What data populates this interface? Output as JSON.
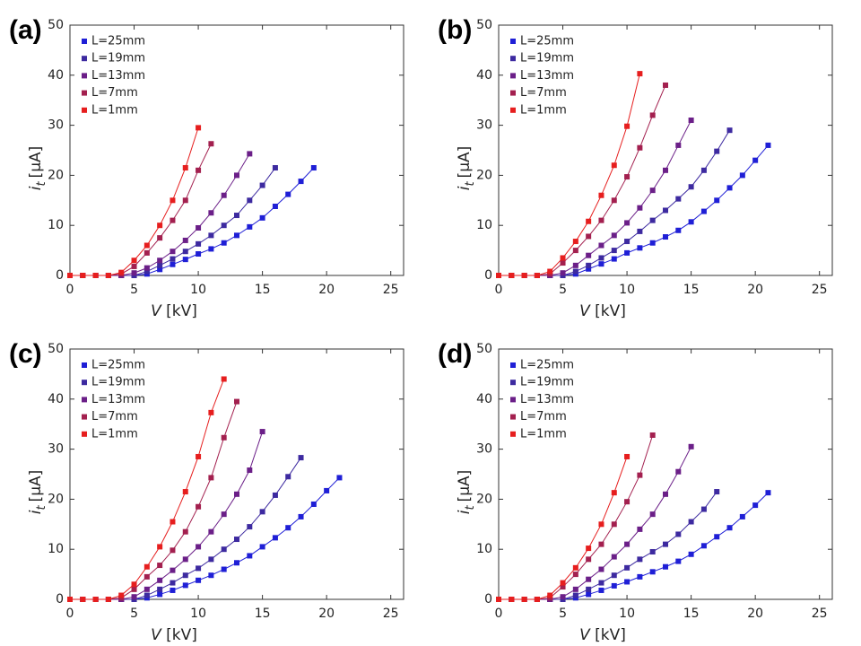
{
  "chart_data": [
    {
      "type": "line",
      "title": "(a)",
      "xlabel": {
        "var": "V",
        "unit": "[kV]"
      },
      "ylabel": {
        "var": "i",
        "sub": "t",
        "unit": "[μA]"
      },
      "xlim": [
        0,
        26
      ],
      "ylim": [
        0,
        50
      ],
      "xticks": [
        0,
        5,
        10,
        15,
        20,
        25
      ],
      "yticks": [
        0,
        10,
        20,
        30,
        40,
        50
      ],
      "series": [
        {
          "name": "L=25mm",
          "color": "#1f1fd6",
          "x": [
            0,
            1,
            2,
            3,
            4,
            5,
            6,
            7,
            8,
            9,
            10,
            11,
            12,
            13,
            14,
            15,
            16,
            17,
            18,
            19
          ],
          "values": [
            0,
            0,
            0,
            0,
            0,
            0,
            0.3,
            1.2,
            2.2,
            3.2,
            4.3,
            5.3,
            6.5,
            8,
            9.7,
            11.5,
            13.8,
            16.2,
            18.8,
            21.5
          ]
        },
        {
          "name": "L=19mm",
          "color": "#3d2aa0",
          "x": [
            0,
            1,
            2,
            3,
            4,
            5,
            6,
            7,
            8,
            9,
            10,
            11,
            12,
            13,
            14,
            15,
            16
          ],
          "values": [
            0,
            0,
            0,
            0,
            0,
            0,
            0.8,
            2,
            3.3,
            4.8,
            6.3,
            8,
            10,
            12,
            15,
            18,
            21.5
          ]
        },
        {
          "name": "L=13mm",
          "color": "#6b1f88",
          "x": [
            0,
            1,
            2,
            3,
            4,
            5,
            6,
            7,
            8,
            9,
            10,
            11,
            12,
            13,
            14
          ],
          "values": [
            0,
            0,
            0,
            0,
            0,
            0.5,
            1.5,
            3,
            4.8,
            7,
            9.5,
            12.5,
            16,
            20,
            24.3
          ]
        },
        {
          "name": "L=7mm",
          "color": "#a3204f",
          "x": [
            0,
            1,
            2,
            3,
            4,
            5,
            6,
            7,
            8,
            9,
            10,
            11
          ],
          "values": [
            0,
            0,
            0,
            0,
            0.3,
            1.8,
            4.5,
            7.5,
            11,
            15,
            21,
            26.3
          ]
        },
        {
          "name": "L=1mm",
          "color": "#e61e1e",
          "x": [
            0,
            1,
            2,
            3,
            4,
            5,
            6,
            7,
            8,
            9,
            10
          ],
          "values": [
            0,
            0,
            0,
            0,
            0.6,
            3,
            6,
            10,
            15,
            21.5,
            29.5
          ]
        }
      ]
    },
    {
      "type": "line",
      "title": "(b)",
      "xlabel": {
        "var": "V",
        "unit": "[kV]"
      },
      "ylabel": {
        "var": "i",
        "sub": "t",
        "unit": "[μA]"
      },
      "xlim": [
        0,
        26
      ],
      "ylim": [
        0,
        50
      ],
      "xticks": [
        0,
        5,
        10,
        15,
        20,
        25
      ],
      "yticks": [
        0,
        10,
        20,
        30,
        40,
        50
      ],
      "series": [
        {
          "name": "L=25mm",
          "color": "#1f1fd6",
          "x": [
            0,
            1,
            2,
            3,
            4,
            5,
            6,
            7,
            8,
            9,
            10,
            11,
            12,
            13,
            14,
            15,
            16,
            17,
            18,
            19,
            20,
            21
          ],
          "values": [
            0,
            0,
            0,
            0,
            0,
            0,
            0.3,
            1.3,
            2.3,
            3.3,
            4.5,
            5.5,
            6.5,
            7.7,
            9,
            10.7,
            12.8,
            15,
            17.5,
            20,
            23,
            26
          ]
        },
        {
          "name": "L=19mm",
          "color": "#3d2aa0",
          "x": [
            0,
            1,
            2,
            3,
            4,
            5,
            6,
            7,
            8,
            9,
            10,
            11,
            12,
            13,
            14,
            15,
            16,
            17,
            18
          ],
          "values": [
            0,
            0,
            0,
            0,
            0,
            0,
            0.8,
            2,
            3.5,
            5,
            6.8,
            8.8,
            11,
            13,
            15.3,
            17.7,
            21,
            24.8,
            29
          ]
        },
        {
          "name": "L=13mm",
          "color": "#6b1f88",
          "x": [
            0,
            1,
            2,
            3,
            4,
            5,
            6,
            7,
            8,
            9,
            10,
            11,
            12,
            13,
            14,
            15
          ],
          "values": [
            0,
            0,
            0,
            0,
            0,
            0.5,
            2,
            4,
            6,
            8,
            10.5,
            13.5,
            17,
            21,
            26,
            31
          ]
        },
        {
          "name": "L=7mm",
          "color": "#a3204f",
          "x": [
            0,
            1,
            2,
            3,
            4,
            5,
            6,
            7,
            8,
            9,
            10,
            11,
            12,
            13
          ],
          "values": [
            0,
            0,
            0,
            0,
            0.3,
            2.5,
            5,
            7.8,
            11,
            15,
            19.7,
            25.5,
            32,
            38
          ]
        },
        {
          "name": "L=1mm",
          "color": "#e61e1e",
          "x": [
            0,
            1,
            2,
            3,
            4,
            5,
            6,
            7,
            8,
            9,
            10,
            11
          ],
          "values": [
            0,
            0,
            0,
            0,
            0.8,
            3.5,
            6.8,
            10.8,
            16,
            22,
            29.8,
            40.3
          ]
        }
      ]
    },
    {
      "type": "line",
      "title": "(c)",
      "xlabel": {
        "var": "V",
        "unit": "[kV]"
      },
      "ylabel": {
        "var": "i",
        "sub": "t",
        "unit": "[μA]"
      },
      "xlim": [
        0,
        26
      ],
      "ylim": [
        0,
        50
      ],
      "xticks": [
        0,
        5,
        10,
        15,
        20,
        25
      ],
      "yticks": [
        0,
        10,
        20,
        30,
        40,
        50
      ],
      "series": [
        {
          "name": "L=25mm",
          "color": "#1f1fd6",
          "x": [
            0,
            1,
            2,
            3,
            4,
            5,
            6,
            7,
            8,
            9,
            10,
            11,
            12,
            13,
            14,
            15,
            16,
            17,
            18,
            19,
            20,
            21
          ],
          "values": [
            0,
            0,
            0,
            0,
            0,
            0,
            0.3,
            1,
            1.8,
            2.8,
            3.8,
            4.8,
            6,
            7.3,
            8.7,
            10.5,
            12.3,
            14.3,
            16.5,
            19,
            21.7,
            24.3
          ]
        },
        {
          "name": "L=19mm",
          "color": "#3d2aa0",
          "x": [
            0,
            1,
            2,
            3,
            4,
            5,
            6,
            7,
            8,
            9,
            10,
            11,
            12,
            13,
            14,
            15,
            16,
            17,
            18
          ],
          "values": [
            0,
            0,
            0,
            0,
            0,
            0,
            0.8,
            2,
            3.3,
            4.8,
            6.2,
            8,
            10,
            12,
            14.5,
            17.5,
            20.8,
            24.5,
            28.3
          ]
        },
        {
          "name": "L=13mm",
          "color": "#6b1f88",
          "x": [
            0,
            1,
            2,
            3,
            4,
            5,
            6,
            7,
            8,
            9,
            10,
            11,
            12,
            13,
            14,
            15
          ],
          "values": [
            0,
            0,
            0,
            0,
            0,
            0.5,
            2,
            3.8,
            5.8,
            8,
            10.5,
            13.5,
            17,
            21,
            25.8,
            33.5
          ]
        },
        {
          "name": "L=7mm",
          "color": "#a3204f",
          "x": [
            0,
            1,
            2,
            3,
            4,
            5,
            6,
            7,
            8,
            9,
            10,
            11,
            12,
            13
          ],
          "values": [
            0,
            0,
            0,
            0,
            0.3,
            2,
            4.5,
            6.8,
            9.8,
            13.5,
            18.5,
            24.3,
            32.3,
            39.5
          ]
        },
        {
          "name": "L=1mm",
          "color": "#e61e1e",
          "x": [
            0,
            1,
            2,
            3,
            4,
            5,
            6,
            7,
            8,
            9,
            10,
            11,
            12
          ],
          "values": [
            0,
            0,
            0,
            0,
            0.8,
            3,
            6.5,
            10.5,
            15.5,
            21.5,
            28.5,
            37.3,
            44
          ]
        }
      ]
    },
    {
      "type": "line",
      "title": "(d)",
      "xlabel": {
        "var": "V",
        "unit": "[kV]"
      },
      "ylabel": {
        "var": "i",
        "sub": "t",
        "unit": "[μA]"
      },
      "xlim": [
        0,
        26
      ],
      "ylim": [
        0,
        50
      ],
      "xticks": [
        0,
        5,
        10,
        15,
        20,
        25
      ],
      "yticks": [
        0,
        10,
        20,
        30,
        40,
        50
      ],
      "series": [
        {
          "name": "L=25mm",
          "color": "#1f1fd6",
          "x": [
            0,
            1,
            2,
            3,
            4,
            5,
            6,
            7,
            8,
            9,
            10,
            11,
            12,
            13,
            14,
            15,
            16,
            17,
            18,
            19,
            20,
            21
          ],
          "values": [
            0,
            0,
            0,
            0,
            0,
            0,
            0.3,
            1,
            1.8,
            2.7,
            3.5,
            4.5,
            5.5,
            6.5,
            7.6,
            9,
            10.7,
            12.5,
            14.3,
            16.5,
            18.8,
            21.3
          ]
        },
        {
          "name": "L=19mm",
          "color": "#3d2aa0",
          "x": [
            0,
            1,
            2,
            3,
            4,
            5,
            6,
            7,
            8,
            9,
            10,
            11,
            12,
            13,
            14,
            15,
            16,
            17
          ],
          "values": [
            0,
            0,
            0,
            0,
            0,
            0,
            0.8,
            2,
            3.3,
            4.8,
            6.3,
            8,
            9.5,
            11,
            13,
            15.5,
            18,
            21.5
          ]
        },
        {
          "name": "L=13mm",
          "color": "#6b1f88",
          "x": [
            0,
            1,
            2,
            3,
            4,
            5,
            6,
            7,
            8,
            9,
            10,
            11,
            12,
            13,
            14,
            15
          ],
          "values": [
            0,
            0,
            0,
            0,
            0,
            0.5,
            2,
            4,
            6,
            8.5,
            11,
            14,
            17,
            21,
            25.5,
            30.5
          ]
        },
        {
          "name": "L=7mm",
          "color": "#a3204f",
          "x": [
            0,
            1,
            2,
            3,
            4,
            5,
            6,
            7,
            8,
            9,
            10,
            11,
            12
          ],
          "values": [
            0,
            0,
            0,
            0,
            0.3,
            2.5,
            5,
            8,
            11,
            15,
            19.5,
            24.8,
            32.8
          ]
        },
        {
          "name": "L=1mm",
          "color": "#e61e1e",
          "x": [
            0,
            1,
            2,
            3,
            4,
            5,
            6,
            7,
            8,
            9,
            10
          ],
          "values": [
            0,
            0,
            0,
            0,
            0.8,
            3.3,
            6.3,
            10.2,
            15,
            21.3,
            28.5
          ]
        }
      ]
    }
  ]
}
